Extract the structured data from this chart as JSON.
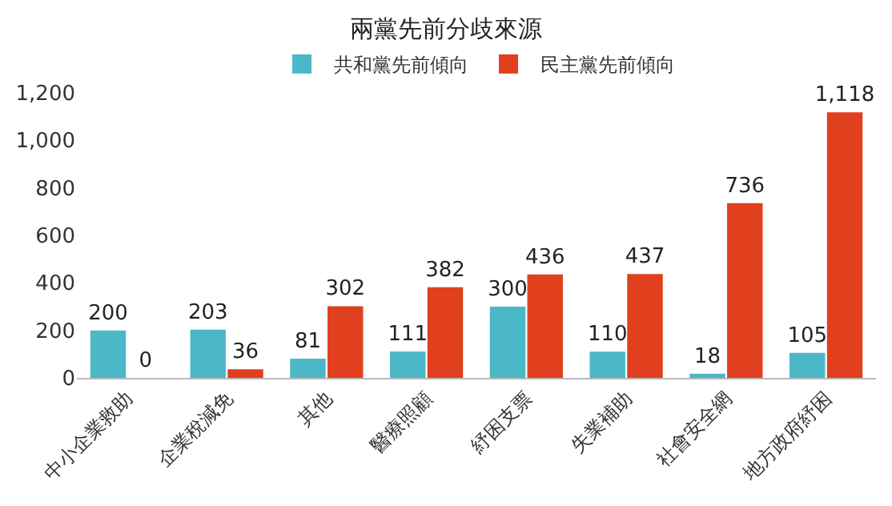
{
  "chart_data": {
    "type": "bar",
    "title": "兩黨先前分歧來源",
    "categories": [
      "中小企業救助",
      "企業稅減免",
      "其他",
      "醫療照顧",
      "紓困支票",
      "失業補助",
      "社會安全網",
      "地方政府紓困"
    ],
    "series": [
      {
        "name": "共和黨先前傾向",
        "color": "#4bb8c8",
        "values": [
          200,
          203,
          81,
          111,
          300,
          110,
          18,
          105
        ],
        "value_labels": [
          "200",
          "203",
          "81",
          "111",
          "300",
          "110",
          "18",
          "105"
        ]
      },
      {
        "name": "民主黨先前傾向",
        "color": "#e0401e",
        "values": [
          0,
          36,
          302,
          382,
          436,
          437,
          736,
          1118
        ],
        "value_labels": [
          "0",
          "36",
          "302",
          "382",
          "436",
          "437",
          "736",
          "1,118"
        ]
      }
    ],
    "ylim": [
      0,
      1200
    ],
    "yticks": [
      0,
      200,
      400,
      600,
      800,
      {
        "value": 1000,
        "label": "1,000"
      },
      {
        "value": 1200,
        "label": "1,200"
      }
    ],
    "grid": false,
    "legend": "top"
  }
}
